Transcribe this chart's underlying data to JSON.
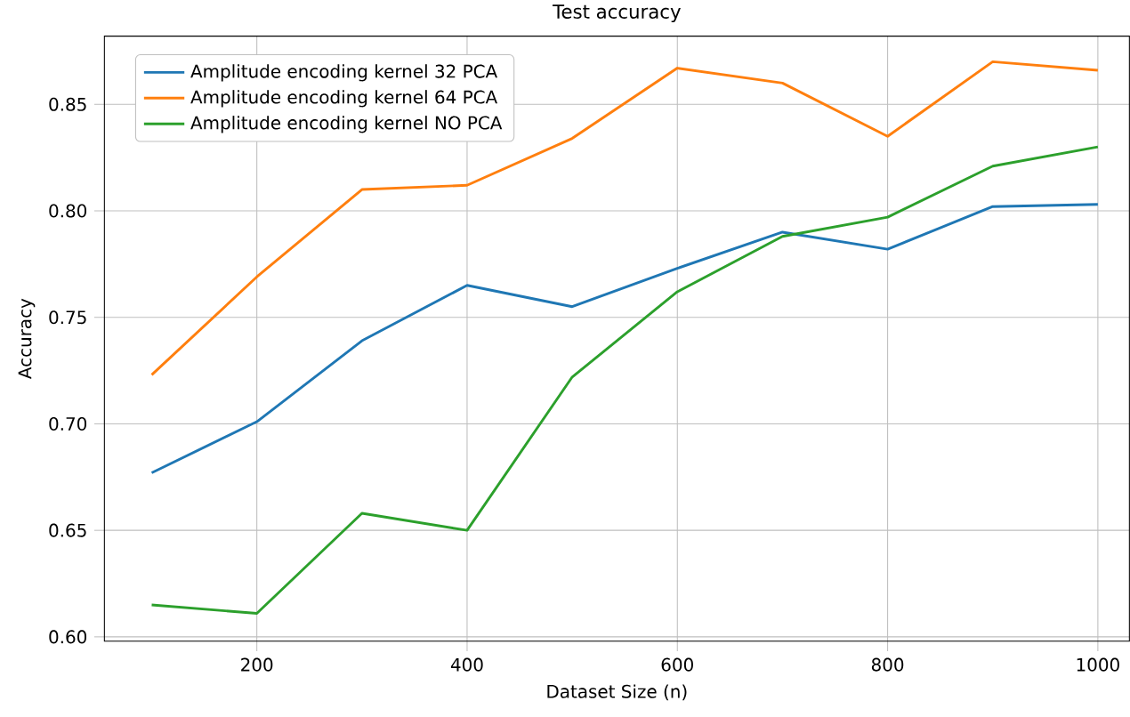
{
  "chart_data": {
    "type": "line",
    "title": "Test accuracy",
    "xlabel": "Dataset Size (n)",
    "ylabel": "Accuracy",
    "x": [
      100,
      200,
      300,
      400,
      500,
      600,
      700,
      800,
      900,
      1000
    ],
    "series": [
      {
        "name": "Amplitude encoding kernel 32 PCA",
        "color": "#1f77b4",
        "values": [
          0.677,
          0.701,
          0.739,
          0.765,
          0.755,
          0.773,
          0.79,
          0.782,
          0.802,
          0.803
        ]
      },
      {
        "name": "Amplitude encoding kernel 64 PCA",
        "color": "#ff7f0e",
        "values": [
          0.723,
          0.769,
          0.81,
          0.812,
          0.834,
          0.867,
          0.86,
          0.835,
          0.87,
          0.866
        ]
      },
      {
        "name": "Amplitude encoding kernel NO PCA",
        "color": "#2ca02c",
        "values": [
          0.615,
          0.611,
          0.658,
          0.65,
          0.722,
          0.762,
          0.788,
          0.797,
          0.821,
          0.83
        ]
      }
    ],
    "xlim": [
      55,
      1030
    ],
    "ylim": [
      0.598,
      0.882
    ],
    "xticks": [
      200,
      400,
      600,
      800,
      1000
    ],
    "yticks": [
      {
        "value": 0.6,
        "label": "0.60"
      },
      {
        "value": 0.65,
        "label": "0.65"
      },
      {
        "value": 0.7,
        "label": "0.70"
      },
      {
        "value": 0.75,
        "label": "0.75"
      },
      {
        "value": 0.8,
        "label": "0.80"
      },
      {
        "value": 0.85,
        "label": "0.85"
      }
    ],
    "grid": true,
    "legend": "top left",
    "marker": "none",
    "line_style": "solid"
  }
}
